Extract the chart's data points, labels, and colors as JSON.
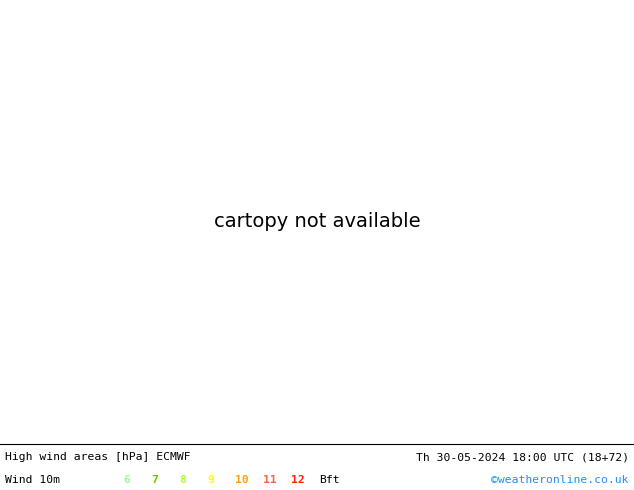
{
  "title_left": "High wind areas [hPa] ECMWF",
  "title_right": "Th 30-05-2024 18:00 UTC (18+72)",
  "wind_label": "Wind 10m",
  "bft_numbers": [
    "6",
    "7",
    "8",
    "9",
    "10",
    "11",
    "12"
  ],
  "bft_colors": [
    "#98fb98",
    "#66cd00",
    "#adff2f",
    "#ffff00",
    "#ffa500",
    "#ff6347",
    "#ff2200"
  ],
  "bft_suffix": "Bft",
  "copyright": "©weatheronline.co.uk",
  "copyright_color": "#1e90ff",
  "ocean_color": "#d8d8d8",
  "land_color": "#c8e6a0",
  "land_edge_color": "#a0a0a0",
  "figsize": [
    6.34,
    4.9
  ],
  "dpi": 100,
  "map_extent": [
    90,
    165,
    -15,
    55
  ],
  "high_wind_green": "#90ee90",
  "blue_isobar_color": "#0000cd",
  "red_isobar_color": "#cc0000",
  "black_isobar_color": "#000000"
}
